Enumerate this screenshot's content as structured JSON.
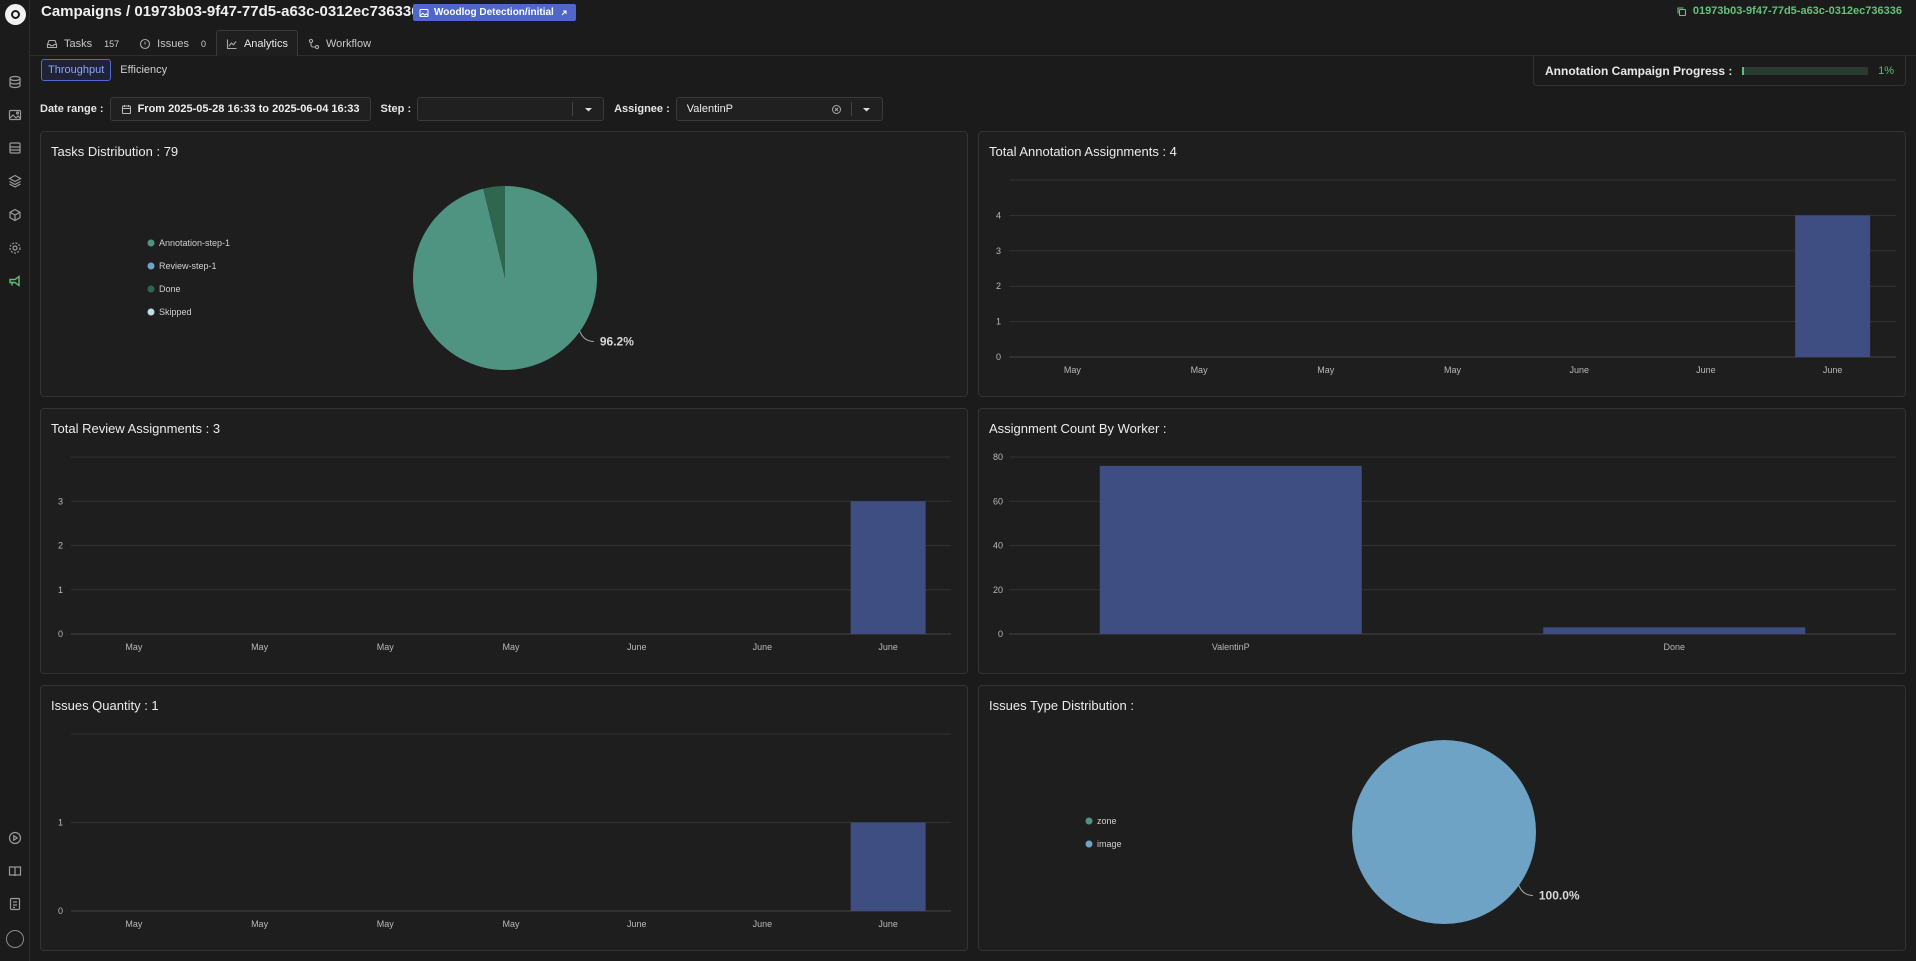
{
  "header": {
    "title": "Campaigns / 01973b03-9f47-77d5-a63c-0312ec736336",
    "dataset_link": "Woodlog Detection/initial",
    "campaign_id": "01973b03-9f47-77d5-a63c-0312ec736336"
  },
  "tabs": [
    {
      "label": "Tasks",
      "count": "157"
    },
    {
      "label": "Issues",
      "count": "0"
    },
    {
      "label": "Analytics",
      "count": ""
    },
    {
      "label": "Workflow",
      "count": ""
    }
  ],
  "subtabs": [
    "Throughput",
    "Efficiency"
  ],
  "progress": {
    "label": "Annotation Campaign Progress :",
    "percent_text": "1%",
    "fraction": 0.01
  },
  "filters": {
    "date_label": "Date range :",
    "date_value": "From 2025-05-28 16:33 to 2025-06-04 16:33",
    "step_label": "Step :",
    "step_value": "",
    "assignee_label": "Assignee :",
    "assignee_value": "ValentinP"
  },
  "panels": {
    "tasks_distribution": {
      "title": "Tasks Distribution : 79"
    },
    "total_annotation": {
      "title": "Total Annotation Assignments : 4"
    },
    "total_review": {
      "title": "Total Review Assignments : 3"
    },
    "assignment_worker": {
      "title": "Assignment Count By Worker :"
    },
    "issues_quantity": {
      "title": "Issues Quantity : 1"
    },
    "issues_type": {
      "title": "Issues Type Distribution :"
    }
  },
  "colors": {
    "bar": "#3e4d82",
    "annotation_step": "#4e9480",
    "review_step": "#6ea3c5",
    "done": "#2f6650",
    "skipped": "#c2dbe8",
    "zone": "#4e9480",
    "image": "#6ea3c5",
    "accent_green": "#5fbf74"
  },
  "chart_data": [
    {
      "type": "pie",
      "name": "tasks_distribution",
      "labels": [
        "Annotation-step-1",
        "Review-step-1",
        "Done",
        "Skipped"
      ],
      "values": [
        76,
        0,
        3,
        0
      ],
      "percent_label": "96.2%"
    },
    {
      "type": "bar",
      "name": "total_annotation",
      "categories": [
        "May",
        "May",
        "May",
        "May",
        "June",
        "June",
        "June"
      ],
      "values": [
        0,
        0,
        0,
        0,
        0,
        0,
        4
      ],
      "yticks": [
        "0",
        "1",
        "2",
        "3",
        "4"
      ],
      "ylim": [
        0,
        5
      ]
    },
    {
      "type": "bar",
      "name": "total_review",
      "categories": [
        "May",
        "May",
        "May",
        "May",
        "June",
        "June",
        "June"
      ],
      "values": [
        0,
        0,
        0,
        0,
        0,
        0,
        3
      ],
      "yticks": [
        "0",
        "1",
        "2",
        "3"
      ],
      "ylim": [
        0,
        4
      ]
    },
    {
      "type": "bar",
      "name": "assignment_worker",
      "categories": [
        "ValentinP",
        "Done"
      ],
      "values": [
        76,
        3
      ],
      "yticks": [
        "0",
        "20",
        "40",
        "60",
        "80"
      ],
      "ylim": [
        0,
        80
      ]
    },
    {
      "type": "bar",
      "name": "issues_quantity",
      "categories": [
        "May",
        "May",
        "May",
        "May",
        "June",
        "June",
        "June"
      ],
      "values": [
        0,
        0,
        0,
        0,
        0,
        0,
        1
      ],
      "yticks": [
        "0",
        "1"
      ],
      "ylim": [
        0,
        2
      ]
    },
    {
      "type": "pie",
      "name": "issues_type",
      "labels": [
        "zone",
        "image"
      ],
      "values": [
        0,
        1
      ],
      "percent_label": "100.0%"
    }
  ]
}
